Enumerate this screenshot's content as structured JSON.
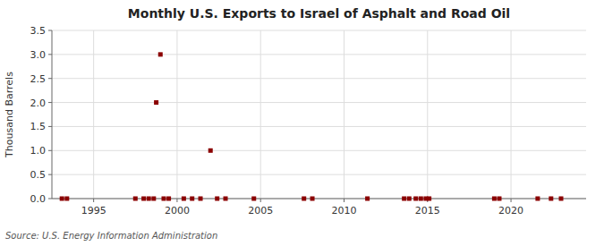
{
  "chart_data": {
    "type": "scatter",
    "title": "Monthly U.S. Exports to Israel of Asphalt and Road Oil",
    "ylabel": "Thousand Barrels",
    "annotations": [
      "Source: U.S. Energy Information Administration"
    ],
    "x": [
      1993.1,
      1993.4,
      1997.5,
      1998.0,
      1998.3,
      1998.6,
      1998.75,
      1999.0,
      1999.2,
      1999.5,
      2000.4,
      2000.9,
      2001.4,
      2002.0,
      2002.4,
      2002.9,
      2004.6,
      2007.6,
      2008.1,
      2011.4,
      2013.6,
      2013.9,
      2014.3,
      2014.6,
      2014.9,
      2015.1,
      2019.0,
      2019.3,
      2021.6,
      2022.4,
      2023.0
    ],
    "values": [
      0.0,
      0.0,
      0.0,
      0.0,
      0.0,
      0.0,
      2.0,
      3.0,
      0.0,
      0.0,
      0.0,
      0.0,
      0.0,
      1.0,
      0.0,
      0.0,
      0.0,
      0.0,
      0.0,
      0.0,
      0.0,
      0.0,
      0.0,
      0.0,
      0.0,
      0.0,
      0.0,
      0.0,
      0.0,
      0.0,
      0.0
    ],
    "color": "#8b0000",
    "marker": "square",
    "xlim": [
      1992.5,
      2024.5
    ],
    "ylim": [
      0,
      3.5
    ],
    "xticks": [
      1995,
      2000,
      2005,
      2010,
      2015,
      2020
    ],
    "yticks": [
      {
        "value": 0.0,
        "label": "0.0"
      },
      {
        "value": 0.5,
        "label": "0.5"
      },
      {
        "value": 1.0,
        "label": "1.0"
      },
      {
        "value": 1.5,
        "label": "1.5"
      },
      {
        "value": 2.0,
        "label": "2.0"
      },
      {
        "value": 2.5,
        "label": "2.5"
      },
      {
        "value": 3.0,
        "label": "3.0"
      },
      {
        "value": 3.5,
        "label": "3.5"
      }
    ],
    "grid": true
  }
}
